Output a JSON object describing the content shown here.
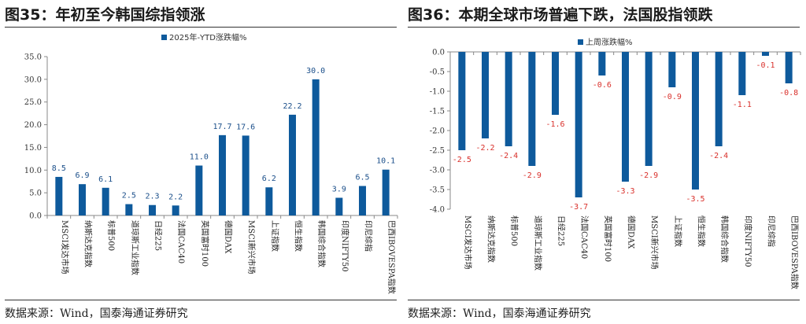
{
  "left": {
    "title": "图35：年初至今韩国综指领涨",
    "source": "数据来源：Wind，国泰海通证券研究"
  },
  "right": {
    "title": "图36：本期全球市场普遍下跌，法国股指领跌",
    "source": "数据来源：Wind，国泰海通证券研究"
  },
  "chart_data": [
    {
      "type": "bar",
      "categories": [
        "MSCI发达市场",
        "纳斯达克指数",
        "标普500",
        "道琼斯工业指数",
        "日经225",
        "法国CAC40",
        "英国富时100",
        "德国DAX",
        "MSCI新兴市场",
        "上证指数",
        "恒生指数",
        "韩国综合指数",
        "印度NIFTY50",
        "印尼综指",
        "巴西IBOVESPA指数"
      ],
      "series": [
        {
          "name": "2025年-YTD涨跌幅%",
          "values": [
            8.5,
            6.9,
            6.1,
            2.5,
            2.3,
            2.2,
            11.0,
            17.7,
            17.6,
            6.2,
            22.2,
            30.0,
            3.9,
            6.5,
            10.1
          ]
        }
      ],
      "ylim": [
        0,
        35
      ],
      "yticks": [
        "0.0",
        "5.0",
        "10.0",
        "15.0",
        "20.0",
        "25.0",
        "30.0",
        "35.0"
      ],
      "data_labels": [
        "8.5",
        "6.9",
        "6.1",
        "2.5",
        "2.3",
        "2.2",
        "11.0",
        "17.7",
        "17.6",
        "6.2",
        "22.2",
        "30.0",
        "3.9",
        "6.5",
        "10.1"
      ],
      "legend_position": "top",
      "bar_color": "#0e5a9c",
      "grid": false
    },
    {
      "type": "bar",
      "categories": [
        "MSCI发达市场",
        "纳斯达克指数",
        "标普500",
        "道琼斯工业指数",
        "日经225",
        "法国CAC40",
        "英国富时100",
        "德国DAX",
        "MSCI新兴市场",
        "上证指数",
        "恒生指数",
        "韩国综合指数",
        "印度NIFTY50",
        "印尼综指",
        "巴西IBOVESPA指数"
      ],
      "series": [
        {
          "name": "上周涨跌幅%",
          "values": [
            -2.5,
            -2.2,
            -2.4,
            -2.9,
            -1.6,
            -3.7,
            -0.6,
            -3.3,
            -2.9,
            -0.9,
            -3.5,
            -2.4,
            -1.1,
            -0.1,
            -0.8
          ]
        }
      ],
      "ylim": [
        -4.0,
        0.0
      ],
      "yticks": [
        "0.0",
        "-0.5",
        "-1.0",
        "-1.5",
        "-2.0",
        "-2.5",
        "-3.0",
        "-3.5",
        "-4.0"
      ],
      "data_labels": [
        "-2.5",
        "-2.2",
        "-2.4",
        "-2.9",
        "-1.6",
        "-3.7",
        "-0.6",
        "-3.3",
        "-2.9",
        "-0.9",
        "-3.5",
        "-2.4",
        "-1.1",
        "-0.1",
        "-0.8"
      ],
      "legend_position": "top",
      "bar_color": "#0e5a9c",
      "grid": false
    }
  ]
}
